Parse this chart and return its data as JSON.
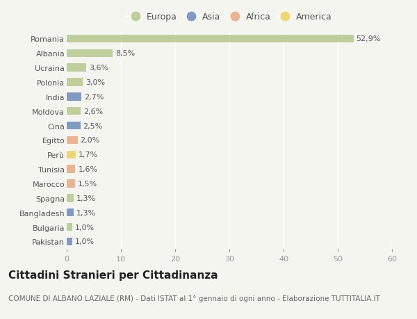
{
  "countries": [
    "Romania",
    "Albania",
    "Ucraina",
    "Polonia",
    "India",
    "Moldova",
    "Cina",
    "Egitto",
    "Perù",
    "Tunisia",
    "Marocco",
    "Spagna",
    "Bangladesh",
    "Bulgaria",
    "Pakistan"
  ],
  "values": [
    52.9,
    8.5,
    3.6,
    3.0,
    2.7,
    2.6,
    2.5,
    2.0,
    1.7,
    1.6,
    1.5,
    1.3,
    1.3,
    1.0,
    1.0
  ],
  "labels": [
    "52,9%",
    "8,5%",
    "3,6%",
    "3,0%",
    "2,7%",
    "2,6%",
    "2,5%",
    "2,0%",
    "1,7%",
    "1,6%",
    "1,5%",
    "1,3%",
    "1,3%",
    "1,0%",
    "1,0%"
  ],
  "continents": [
    "Europa",
    "Europa",
    "Europa",
    "Europa",
    "Asia",
    "Europa",
    "Asia",
    "Africa",
    "America",
    "Africa",
    "Africa",
    "Europa",
    "Asia",
    "Europa",
    "Asia"
  ],
  "continent_colors": {
    "Europa": "#b5c98e",
    "Asia": "#6b8cba",
    "Africa": "#e8a97e",
    "America": "#f0d060"
  },
  "legend_order": [
    "Europa",
    "Asia",
    "Africa",
    "America"
  ],
  "xlim": [
    0,
    60
  ],
  "xticks": [
    0,
    10,
    20,
    30,
    40,
    50,
    60
  ],
  "title": "Cittadini Stranieri per Cittadinanza",
  "subtitle": "COMUNE DI ALBANO LAZIALE (RM) - Dati ISTAT al 1° gennaio di ogni anno - Elaborazione TUTTITALIA.IT",
  "background_color": "#f5f5f0",
  "bar_height": 0.55,
  "title_fontsize": 11,
  "subtitle_fontsize": 7.5,
  "label_fontsize": 8,
  "tick_fontsize": 8,
  "legend_fontsize": 9
}
